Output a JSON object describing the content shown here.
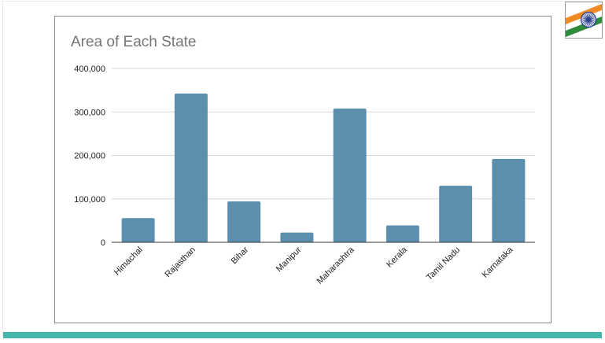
{
  "chart_data": {
    "type": "bar",
    "title": "Area of Each State",
    "categories": [
      "Himachal",
      "Rajasthan",
      "Bihar",
      "Manipur",
      "Maharashtra",
      "Kerala",
      "Tamil Nadu",
      "Karnataka"
    ],
    "values": [
      55673,
      342239,
      94163,
      22327,
      307713,
      38863,
      130058,
      191791
    ],
    "ylim": [
      0,
      400000
    ],
    "yticks": [
      "0",
      "100,000",
      "200,000",
      "300,000",
      "400,000"
    ],
    "xlabel": "",
    "ylabel": "",
    "grid": true,
    "legend": "none",
    "bar_color": "#5b8fad"
  },
  "colors": {
    "accent_bar": "#45b6ab",
    "flag_saffron": "#f08a24",
    "flag_green": "#2e8b3a",
    "flag_chakra": "#2b3f8c"
  },
  "icons": {
    "corner_logo": "indian-flag-icon"
  }
}
